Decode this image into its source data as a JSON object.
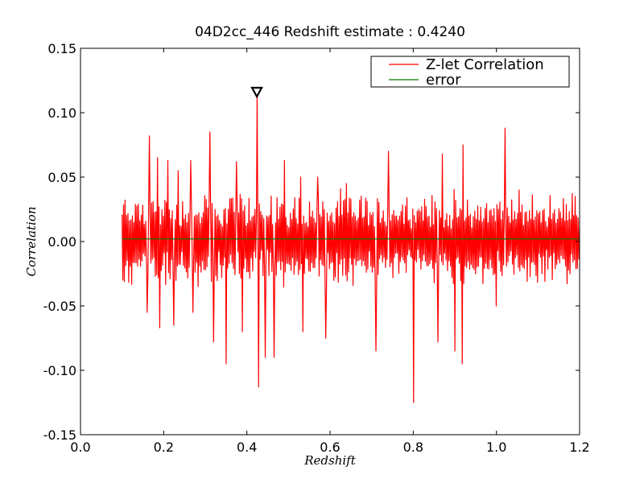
{
  "chart_data": {
    "type": "line",
    "title": "04D2cc_446 Redshift estimate : 0.4240",
    "xlabel": "Redshift",
    "ylabel": "Correlation",
    "xlim": [
      0.0,
      1.2
    ],
    "ylim": [
      -0.15,
      0.15
    ],
    "xticks": [
      "0.0",
      "0.2",
      "0.4",
      "0.6",
      "0.8",
      "1.0",
      "1.2"
    ],
    "yticks": [
      "0.15",
      "0.10",
      "0.05",
      "0.00",
      "-0.05",
      "-0.10",
      "-0.15"
    ],
    "grid": false,
    "legend_position": "top-right",
    "marker": {
      "shape": "triangle-down",
      "x": 0.424,
      "y": 0.115
    },
    "series": [
      {
        "name": "Z-let Correlation",
        "color": "#ff0000",
        "x_start": 0.1,
        "x_end": 1.2,
        "peaks": [
          [
            0.165,
            0.082
          ],
          [
            0.185,
            0.065
          ],
          [
            0.21,
            0.063
          ],
          [
            0.235,
            0.055
          ],
          [
            0.265,
            0.063
          ],
          [
            0.312,
            0.085
          ],
          [
            0.35,
            0.068
          ],
          [
            0.375,
            0.062
          ],
          [
            0.424,
            0.113
          ],
          [
            0.445,
            0.082
          ],
          [
            0.49,
            0.063
          ],
          [
            0.53,
            0.05
          ],
          [
            0.57,
            0.05
          ],
          [
            0.64,
            0.045
          ],
          [
            0.74,
            0.07
          ],
          [
            0.8,
            0.112
          ],
          [
            0.87,
            0.068
          ],
          [
            0.92,
            0.075
          ],
          [
            1.02,
            0.088
          ],
          [
            1.19,
            0.035
          ]
        ],
        "troughs": [
          [
            0.105,
            -0.031
          ],
          [
            0.16,
            -0.055
          ],
          [
            0.19,
            -0.067
          ],
          [
            0.225,
            -0.065
          ],
          [
            0.27,
            -0.055
          ],
          [
            0.32,
            -0.078
          ],
          [
            0.35,
            -0.095
          ],
          [
            0.39,
            -0.07
          ],
          [
            0.428,
            -0.113
          ],
          [
            0.445,
            -0.09
          ],
          [
            0.465,
            -0.09
          ],
          [
            0.535,
            -0.07
          ],
          [
            0.59,
            -0.075
          ],
          [
            0.71,
            -0.085
          ],
          [
            0.8,
            -0.125
          ],
          [
            0.86,
            -0.078
          ],
          [
            0.9,
            -0.085
          ],
          [
            0.918,
            -0.095
          ],
          [
            1.0,
            -0.05
          ],
          [
            1.195,
            -0.021
          ]
        ]
      },
      {
        "name": "error",
        "color": "#007700",
        "x": [
          0.1,
          1.2
        ],
        "y": [
          0.002,
          0.002
        ]
      }
    ]
  }
}
